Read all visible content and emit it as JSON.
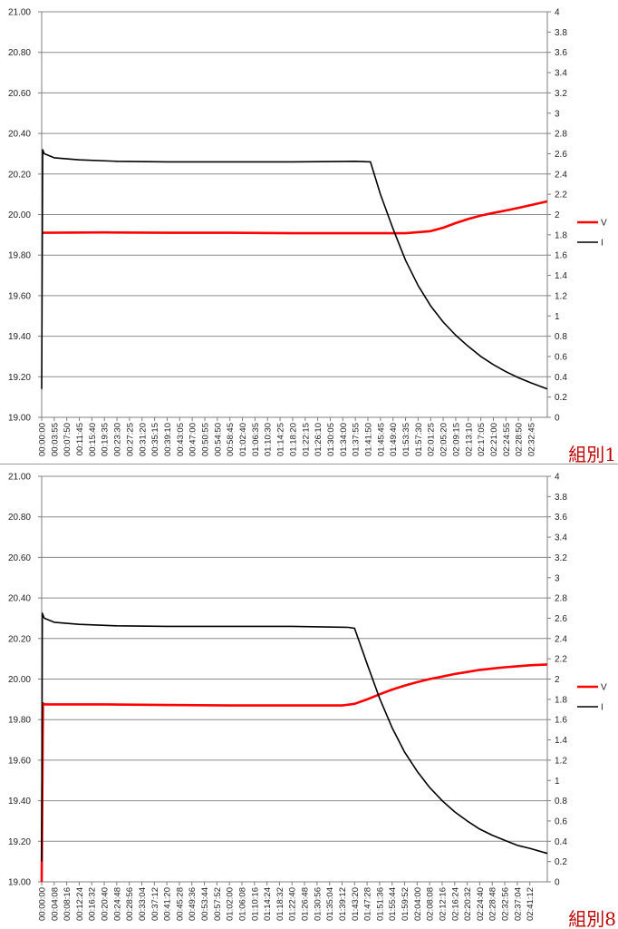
{
  "colors": {
    "V": "#ff0000",
    "I": "#000000",
    "grid": "#8c8c8c",
    "label": "#c00000"
  },
  "chart_data": [
    {
      "type": "line",
      "group_label": "組別1",
      "y_left": {
        "lim": [
          19.0,
          21.0
        ],
        "ticks": [
          "19.00",
          "19.20",
          "19.40",
          "19.60",
          "19.80",
          "20.00",
          "20.20",
          "20.40",
          "20.60",
          "20.80",
          "21.00"
        ]
      },
      "y_right": {
        "lim": [
          0,
          4
        ],
        "ticks": [
          "0",
          "0.2",
          "0.4",
          "0.6",
          "0.8",
          "1",
          "1.2",
          "1.4",
          "1.6",
          "1.8",
          "2",
          "2.2",
          "2.4",
          "2.6",
          "2.8",
          "3",
          "3.2",
          "3.4",
          "3.6",
          "3.8",
          "4"
        ]
      },
      "x_ticks": [
        "00:00:00",
        "00:03:55",
        "00:07:50",
        "00:11:45",
        "00:15:40",
        "00:19:35",
        "00:23:30",
        "00:27:25",
        "00:31:20",
        "00:35:15",
        "00:39:10",
        "00:43:05",
        "00:47:00",
        "00:50:55",
        "00:54:50",
        "00:58:45",
        "01:02:40",
        "01:06:35",
        "01:10:30",
        "01:14:25",
        "01:18:20",
        "01:22:15",
        "01:26:10",
        "01:30:05",
        "01:34:00",
        "01:37:55",
        "01:41:50",
        "01:45:45",
        "01:49:40",
        "01:53:35",
        "01:57:30",
        "02:01:25",
        "02:05:20",
        "02:09:15",
        "02:13:10",
        "02:17:05",
        "02:21:00",
        "02:24:55",
        "02:28:50",
        "02:32:45"
      ],
      "x_end_index": 40.3,
      "grid": true,
      "legend_position": "right",
      "series": [
        {
          "name": "V",
          "axis": "left",
          "x": [
            0,
            0.2,
            5,
            10,
            15,
            20,
            25,
            29,
            31,
            32,
            33,
            34,
            35,
            36,
            37,
            38,
            40.3
          ],
          "y": [
            19.91,
            19.91,
            19.912,
            19.91,
            19.91,
            19.908,
            19.908,
            19.908,
            19.918,
            19.935,
            19.958,
            19.978,
            19.995,
            20.008,
            20.02,
            20.033,
            20.065
          ]
        },
        {
          "name": "I",
          "axis": "right",
          "x": [
            0,
            0.08,
            0.2,
            1,
            3,
            6,
            10,
            20,
            25,
            26.2,
            27,
            28,
            29,
            30,
            31,
            32,
            33,
            34,
            35,
            36,
            37,
            38,
            39,
            40.3
          ],
          "y": [
            0.28,
            2.64,
            2.6,
            2.56,
            2.54,
            2.525,
            2.52,
            2.52,
            2.525,
            2.52,
            2.2,
            1.86,
            1.55,
            1.3,
            1.1,
            0.94,
            0.81,
            0.7,
            0.6,
            0.52,
            0.45,
            0.39,
            0.34,
            0.28
          ]
        }
      ]
    },
    {
      "type": "line",
      "group_label": "組別8",
      "y_left": {
        "lim": [
          19.0,
          21.0
        ],
        "ticks": [
          "19.00",
          "19.20",
          "19.40",
          "19.60",
          "19.80",
          "20.00",
          "20.20",
          "20.40",
          "20.60",
          "20.80",
          "21.00"
        ]
      },
      "y_right": {
        "lim": [
          0,
          4
        ],
        "ticks": [
          "0",
          "0.2",
          "0.4",
          "0.6",
          "0.8",
          "1",
          "1.2",
          "1.4",
          "1.6",
          "1.8",
          "2",
          "2.2",
          "2.4",
          "2.6",
          "2.8",
          "3",
          "3.2",
          "3.4",
          "3.6",
          "3.8",
          "4"
        ]
      },
      "x_ticks": [
        "00:00:00",
        "00:04:08",
        "00:08:16",
        "00:12:24",
        "00:16:32",
        "00:20:40",
        "00:24:48",
        "00:28:56",
        "00:33:04",
        "00:37:12",
        "00:41:20",
        "00:45:28",
        "00:49:36",
        "00:53:44",
        "00:57:52",
        "01:02:00",
        "01:06:08",
        "01:10:16",
        "01:14:24",
        "01:18:32",
        "01:22:40",
        "01:26:48",
        "01:30:56",
        "01:35:04",
        "01:39:12",
        "01:43:20",
        "01:47:28",
        "01:51:36",
        "01:55:44",
        "01:59:52",
        "02:04:00",
        "02:08:08",
        "02:12:16",
        "02:16:24",
        "02:20:32",
        "02:24:40",
        "02:28:48",
        "02:32:56",
        "02:37:04",
        "02:41:12"
      ],
      "x_end_index": 40.4,
      "grid": true,
      "legend_position": "right",
      "series": [
        {
          "name": "V",
          "axis": "left",
          "x": [
            0,
            0.1,
            0.25,
            5,
            10,
            15,
            20,
            24,
            25,
            26,
            27,
            28,
            29,
            30,
            31,
            32,
            33,
            34,
            35,
            36,
            37,
            38,
            39,
            40.4
          ],
          "y": [
            19.0,
            19.88,
            19.875,
            19.875,
            19.872,
            19.87,
            19.87,
            19.87,
            19.878,
            19.9,
            19.925,
            19.948,
            19.968,
            19.985,
            20.0,
            20.012,
            20.025,
            20.035,
            20.045,
            20.052,
            20.058,
            20.063,
            20.068,
            20.072
          ]
        },
        {
          "name": "I",
          "axis": "right",
          "x": [
            0,
            0.05,
            0.2,
            1,
            3,
            6,
            10,
            15,
            20,
            24.5,
            25,
            26,
            27,
            28,
            29,
            30,
            31,
            32,
            33,
            34,
            35,
            36,
            37,
            38,
            39,
            40.4
          ],
          "y": [
            0.2,
            2.65,
            2.6,
            2.56,
            2.54,
            2.525,
            2.52,
            2.52,
            2.52,
            2.51,
            2.5,
            2.15,
            1.81,
            1.52,
            1.28,
            1.09,
            0.93,
            0.8,
            0.69,
            0.6,
            0.52,
            0.46,
            0.41,
            0.36,
            0.33,
            0.28
          ]
        }
      ]
    }
  ]
}
